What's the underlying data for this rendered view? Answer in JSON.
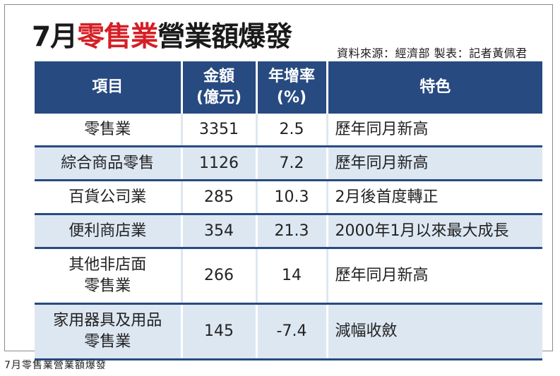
{
  "title": {
    "prefix": "7月",
    "highlight": "零售業",
    "suffix": "營業額爆發"
  },
  "source": "資料來源：經濟部 製表：記者黃佩君",
  "colors": {
    "header_bg": "#274a80",
    "row_alt_bg": "#dde7f2",
    "title_red": "#d51f26"
  },
  "table": {
    "headers": [
      {
        "line1": "項目",
        "line2": ""
      },
      {
        "line1": "金額",
        "line2": "(億元)"
      },
      {
        "line1": "年增率",
        "line2": "(%)"
      },
      {
        "line1": "特色",
        "line2": ""
      }
    ],
    "rows": [
      {
        "item_line1": "零售業",
        "item_line2": "",
        "amount": "3351",
        "yoy": "2.5",
        "feature": "歷年同月新高"
      },
      {
        "item_line1": "綜合商品零售",
        "item_line2": "",
        "amount": "1126",
        "yoy": "7.2",
        "feature": "歷年同月新高"
      },
      {
        "item_line1": "百貨公司業",
        "item_line2": "",
        "amount": "285",
        "yoy": "10.3",
        "feature": "2月後首度轉正"
      },
      {
        "item_line1": "便利商店業",
        "item_line2": "",
        "amount": "354",
        "yoy": "21.3",
        "feature": "2000年1月以來最大成長"
      },
      {
        "item_line1": "其他非店面",
        "item_line2": "零售業",
        "amount": "266",
        "yoy": "14",
        "feature": "歷年同月新高"
      },
      {
        "item_line1": "家用器具及用品",
        "item_line2": "零售業",
        "amount": "145",
        "yoy": "-7.4",
        "feature": "減幅收斂"
      }
    ]
  },
  "caption": "7月零售業營業額爆發"
}
